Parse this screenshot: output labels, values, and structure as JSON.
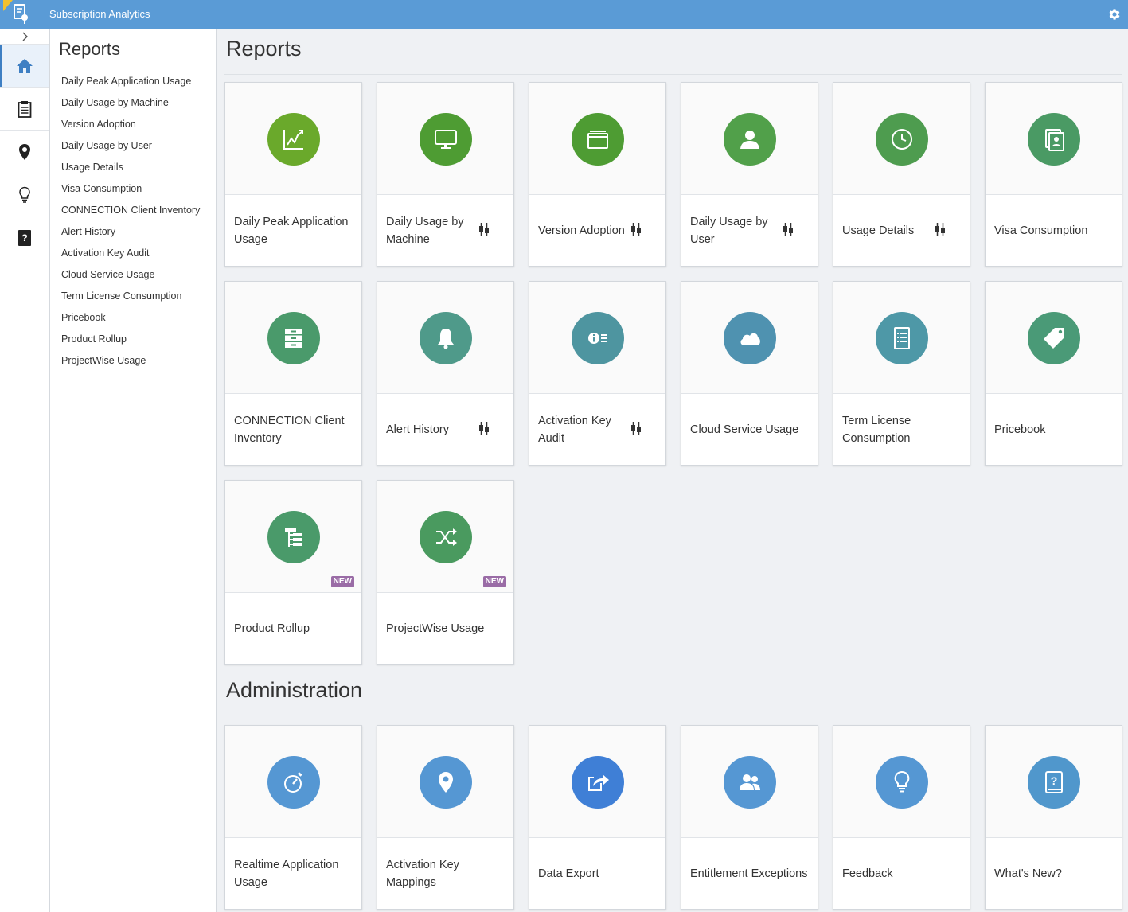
{
  "app": {
    "title": "Subscription Analytics"
  },
  "colors": {
    "topbar": "#5a9bd6",
    "green_bright": "#6aa92b",
    "green": "#4e9c33",
    "green_mid": "#51a04a",
    "teal_green": "#4a9a64",
    "teal": "#4f9a97",
    "blue_teal": "#4e90a8",
    "blue": "#5597d3",
    "blue_strong": "#3f7fd6",
    "new_badge": "#9a6ca6"
  },
  "rail": {
    "items": [
      {
        "icon": "home-icon",
        "active": true
      },
      {
        "icon": "clipboard-icon",
        "active": false
      },
      {
        "icon": "map-pin-icon",
        "active": false
      },
      {
        "icon": "lightbulb-icon",
        "active": false
      },
      {
        "icon": "help-book-icon",
        "active": false
      }
    ]
  },
  "nav": {
    "title": "Reports",
    "items": [
      "Daily Peak Application Usage",
      "Daily Usage by Machine",
      "Version Adoption",
      "Daily Usage by User",
      "Usage Details",
      "Visa Consumption",
      "CONNECTION Client Inventory",
      "Alert History",
      "Activation Key Audit",
      "Cloud Service Usage",
      "Term License Consumption",
      "Pricebook",
      "Product Rollup",
      "ProjectWise Usage"
    ]
  },
  "sections": {
    "reports_title": "Reports",
    "admin_title": "Administration"
  },
  "reports": [
    {
      "label": "Daily Peak Application Usage",
      "icon": "line-chart-icon",
      "color": "#6aa92b",
      "filter": false,
      "new": false
    },
    {
      "label": "Daily Usage by Machine",
      "icon": "monitor-icon",
      "color": "#4e9c33",
      "filter": true,
      "new": false
    },
    {
      "label": "Version Adoption",
      "icon": "window-stack-icon",
      "color": "#4e9c33",
      "filter": true,
      "new": false
    },
    {
      "label": "Daily Usage by User",
      "icon": "user-icon",
      "color": "#51a04a",
      "filter": true,
      "new": false
    },
    {
      "label": "Usage Details",
      "icon": "clock-icon",
      "color": "#4e9c4f",
      "filter": true,
      "new": false
    },
    {
      "label": "Visa Consumption",
      "icon": "id-card-icon",
      "color": "#4a9a64",
      "filter": false,
      "new": false
    },
    {
      "label": "CONNECTION Client Inventory",
      "icon": "cabinet-icon",
      "color": "#4a9a6b",
      "filter": false,
      "new": false
    },
    {
      "label": "Alert History",
      "icon": "bell-icon",
      "color": "#4f9a8a",
      "filter": true,
      "new": false
    },
    {
      "label": "Activation Key Audit",
      "icon": "info-list-icon",
      "color": "#4e95a0",
      "filter": true,
      "new": false
    },
    {
      "label": "Cloud Service Usage",
      "icon": "cloud-icon",
      "color": "#4f92b0",
      "filter": false,
      "new": false
    },
    {
      "label": "Term License Consumption",
      "icon": "document-list-icon",
      "color": "#4e98a7",
      "filter": false,
      "new": false
    },
    {
      "label": "Pricebook",
      "icon": "tag-icon",
      "color": "#4a9a77",
      "filter": false,
      "new": false
    },
    {
      "label": "Product Rollup",
      "icon": "tree-list-icon",
      "color": "#4a9a6a",
      "filter": false,
      "new": true,
      "new_label": "NEW"
    },
    {
      "label": "ProjectWise Usage",
      "icon": "shuffle-icon",
      "color": "#4a9a5f",
      "filter": false,
      "new": true,
      "new_label": "NEW"
    }
  ],
  "admin": [
    {
      "label": "Realtime Application Usage",
      "icon": "stopwatch-icon",
      "color": "#5597d3"
    },
    {
      "label": "Activation Key Mappings",
      "icon": "location-icon",
      "color": "#5597d3"
    },
    {
      "label": "Data Export",
      "icon": "export-share-icon",
      "color": "#3f7fd6"
    },
    {
      "label": "Entitlement Exceptions",
      "icon": "users-icon",
      "color": "#5597d3"
    },
    {
      "label": "Feedback",
      "icon": "lightbulb-icon",
      "color": "#5597d3"
    },
    {
      "label": "What's New?",
      "icon": "question-book-icon",
      "color": "#5097cc"
    }
  ]
}
